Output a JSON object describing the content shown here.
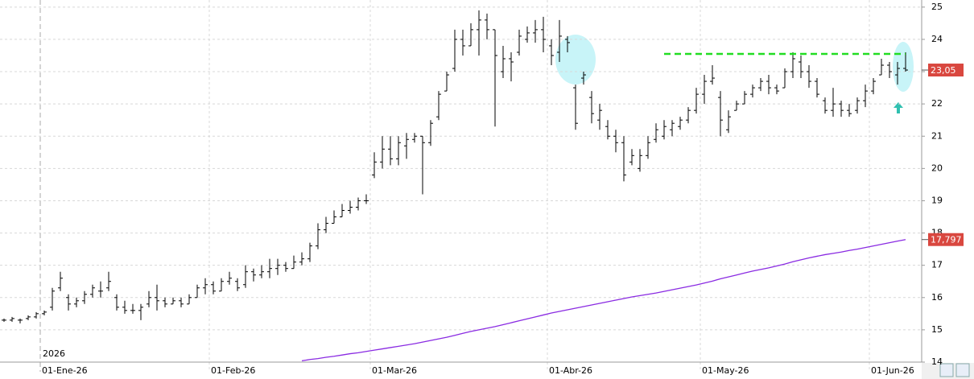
{
  "chart_data": {
    "type": "ohlc",
    "year_label": "2026",
    "categories": [
      null,
      null,
      null,
      null,
      null,
      "01-Ene-26",
      null,
      null,
      null,
      null,
      null,
      null,
      null,
      null,
      null,
      null,
      null,
      null,
      null,
      null,
      null,
      null,
      null,
      null,
      null,
      null,
      "01-Feb-26",
      null,
      null,
      null,
      null,
      null,
      null,
      null,
      null,
      null,
      null,
      null,
      null,
      null,
      null,
      null,
      null,
      null,
      null,
      null,
      "01-Mar-26",
      null,
      null,
      null,
      null,
      null,
      null,
      null,
      null,
      null,
      null,
      null,
      null,
      null,
      null,
      null,
      null,
      null,
      null,
      null,
      null,
      null,
      "01-Abr-26",
      null,
      null,
      null,
      null,
      null,
      null,
      null,
      null,
      null,
      null,
      null,
      null,
      null,
      null,
      null,
      null,
      null,
      null,
      "01-May-26",
      null,
      null,
      null,
      null,
      null,
      null,
      null,
      null,
      null,
      null,
      null,
      null,
      null,
      null,
      null,
      null,
      null,
      null,
      null,
      null,
      "01-Jun-26",
      null,
      null,
      null,
      null
    ],
    "open": [
      15.3,
      15.3,
      15.3,
      15.35,
      15.4,
      15.5,
      15.7,
      16.3,
      16.0,
      15.8,
      15.9,
      16.1,
      16.2,
      16.3,
      16.0,
      15.7,
      15.6,
      15.6,
      15.8,
      16.0,
      15.9,
      15.8,
      15.9,
      15.8,
      16.0,
      16.3,
      16.4,
      16.2,
      16.5,
      16.5,
      16.4,
      16.8,
      16.7,
      16.8,
      16.9,
      17.0,
      16.9,
      17.1,
      17.2,
      17.6,
      18.1,
      18.3,
      18.5,
      18.7,
      18.8,
      19.0,
      19.8,
      20.2,
      20.6,
      20.3,
      20.7,
      20.9,
      21.0,
      20.8,
      21.6,
      22.4,
      23.1,
      24.0,
      23.8,
      24.3,
      24.6,
      24.3,
      23.0,
      23.4,
      23.6,
      24.0,
      24.2,
      24.3,
      23.8,
      23.6,
      24.0,
      22.5,
      22.8,
      22.2,
      21.5,
      21.3,
      21.0,
      20.8,
      20.2,
      20.0,
      20.4,
      20.9,
      21.0,
      21.2,
      21.3,
      21.5,
      21.8,
      22.3,
      22.7,
      22.2,
      21.2,
      21.8,
      22.0,
      22.3,
      22.5,
      22.7,
      22.5,
      22.5,
      23.0,
      23.3,
      23.0,
      22.7,
      22.1,
      21.8,
      22.0,
      21.8,
      21.8,
      22.1,
      22.4,
      22.9,
      23.2,
      22.9,
      23.1
    ],
    "high": [
      15.35,
      15.4,
      15.35,
      15.45,
      15.55,
      15.6,
      16.3,
      16.8,
      16.1,
      16.0,
      16.2,
      16.4,
      16.5,
      16.8,
      16.1,
      15.9,
      15.8,
      15.8,
      16.2,
      16.4,
      16.0,
      16.0,
      16.0,
      16.1,
      16.4,
      16.6,
      16.5,
      16.6,
      16.8,
      16.6,
      17.0,
      16.9,
      17.0,
      17.2,
      17.2,
      17.1,
      17.3,
      17.4,
      17.7,
      18.3,
      18.5,
      18.7,
      18.9,
      19.0,
      19.1,
      19.2,
      20.5,
      21.0,
      21.0,
      21.0,
      21.1,
      21.1,
      21.0,
      21.5,
      22.4,
      23.0,
      24.3,
      24.3,
      24.5,
      24.9,
      24.8,
      24.3,
      23.8,
      23.6,
      24.3,
      24.4,
      24.6,
      24.7,
      24.0,
      24.6,
      24.1,
      22.6,
      23.0,
      22.4,
      22.0,
      21.5,
      21.2,
      21.0,
      20.6,
      20.6,
      21.0,
      21.4,
      21.5,
      21.5,
      21.6,
      21.9,
      22.5,
      22.9,
      23.2,
      22.4,
      21.8,
      22.1,
      22.4,
      22.6,
      22.8,
      22.9,
      22.6,
      23.1,
      23.6,
      23.5,
      23.2,
      22.8,
      22.2,
      22.5,
      22.1,
      22.0,
      22.2,
      22.6,
      22.8,
      23.4,
      23.3,
      23.3,
      23.6
    ],
    "low": [
      15.25,
      15.25,
      15.2,
      15.3,
      15.35,
      15.45,
      15.6,
      16.2,
      15.6,
      15.7,
      15.8,
      16.0,
      16.0,
      16.2,
      15.6,
      15.5,
      15.5,
      15.3,
      15.7,
      15.6,
      15.7,
      15.8,
      15.7,
      15.8,
      16.0,
      16.1,
      16.1,
      16.2,
      16.4,
      16.2,
      16.3,
      16.5,
      16.6,
      16.6,
      16.7,
      16.8,
      16.9,
      17.0,
      17.1,
      17.5,
      18.0,
      18.3,
      18.5,
      18.6,
      18.7,
      18.9,
      19.7,
      20.0,
      20.1,
      20.1,
      20.3,
      20.8,
      19.2,
      20.7,
      21.5,
      22.4,
      23.0,
      23.5,
      23.8,
      23.5,
      24.0,
      21.3,
      22.8,
      22.7,
      23.5,
      23.9,
      23.9,
      23.6,
      23.2,
      23.3,
      23.6,
      21.2,
      22.6,
      21.4,
      21.2,
      20.9,
      20.5,
      19.6,
      20.1,
      19.9,
      20.3,
      20.8,
      20.9,
      21.0,
      21.2,
      21.4,
      21.7,
      22.0,
      22.6,
      21.0,
      21.1,
      21.8,
      22.0,
      22.2,
      22.4,
      22.3,
      22.3,
      22.5,
      22.8,
      22.8,
      22.5,
      22.2,
      21.7,
      21.6,
      21.6,
      21.6,
      21.7,
      21.9,
      22.3,
      22.9,
      22.8,
      22.6,
      23.0
    ],
    "close": [
      15.3,
      15.35,
      15.3,
      15.4,
      15.5,
      15.55,
      16.2,
      16.6,
      15.8,
      15.9,
      16.1,
      16.3,
      16.2,
      16.5,
      15.7,
      15.6,
      15.6,
      15.7,
      16.0,
      15.9,
      15.8,
      15.9,
      15.8,
      16.0,
      16.3,
      16.4,
      16.2,
      16.5,
      16.6,
      16.3,
      16.8,
      16.7,
      16.8,
      16.9,
      17.0,
      16.9,
      17.1,
      17.2,
      17.6,
      18.1,
      18.3,
      18.5,
      18.7,
      18.8,
      19.0,
      19.0,
      20.2,
      20.6,
      20.3,
      20.8,
      20.9,
      21.0,
      20.8,
      21.4,
      22.3,
      22.9,
      24.0,
      23.8,
      24.3,
      24.6,
      24.3,
      23.5,
      23.4,
      23.3,
      24.1,
      24.2,
      24.3,
      24.0,
      23.5,
      24.1,
      23.9,
      21.4,
      22.9,
      21.7,
      21.8,
      21.0,
      20.8,
      19.8,
      20.4,
      20.4,
      20.8,
      21.2,
      21.3,
      21.4,
      21.5,
      21.8,
      22.3,
      22.7,
      22.8,
      21.5,
      21.6,
      22.0,
      22.3,
      22.5,
      22.7,
      22.5,
      22.4,
      23.0,
      23.4,
      23.0,
      22.7,
      22.3,
      21.8,
      22.0,
      21.8,
      21.7,
      22.1,
      22.4,
      22.7,
      23.2,
      23.0,
      23.1,
      23.05
    ],
    "price_label": {
      "value": 23.05,
      "label": "23,05"
    },
    "bar_color": "#000000",
    "moving_average": {
      "color": "#8a2be2",
      "values": [
        null,
        null,
        null,
        null,
        null,
        null,
        null,
        null,
        null,
        null,
        null,
        null,
        null,
        null,
        null,
        null,
        null,
        null,
        null,
        null,
        null,
        null,
        null,
        null,
        null,
        null,
        null,
        null,
        null,
        null,
        null,
        null,
        null,
        null,
        null,
        null,
        null,
        14.04,
        14.08,
        14.11,
        14.15,
        14.18,
        14.22,
        14.26,
        14.29,
        14.33,
        14.37,
        14.41,
        14.45,
        14.49,
        14.53,
        14.57,
        14.62,
        14.67,
        14.72,
        14.77,
        14.83,
        14.89,
        14.95,
        15.0,
        15.05,
        15.1,
        15.16,
        15.22,
        15.28,
        15.34,
        15.4,
        15.46,
        15.52,
        15.57,
        15.62,
        15.67,
        15.72,
        15.77,
        15.82,
        15.87,
        15.92,
        15.97,
        16.02,
        16.06,
        16.1,
        16.14,
        16.19,
        16.24,
        16.29,
        16.34,
        16.39,
        16.45,
        16.51,
        16.58,
        16.64,
        16.7,
        16.76,
        16.82,
        16.87,
        16.92,
        16.98,
        17.04,
        17.11,
        17.17,
        17.23,
        17.28,
        17.33,
        17.37,
        17.41,
        17.46,
        17.5,
        17.55,
        17.6,
        17.65,
        17.7,
        17.75,
        17.797
      ],
      "last_label": {
        "value": 17.797,
        "label": "17,797"
      }
    },
    "resistance": {
      "value": 23.55,
      "color": "#22dd22"
    },
    "ylim": [
      14,
      25.22
    ],
    "yticks": [
      14,
      15,
      16,
      17,
      18,
      19,
      20,
      21,
      22,
      23,
      24,
      25
    ],
    "grid": true
  }
}
